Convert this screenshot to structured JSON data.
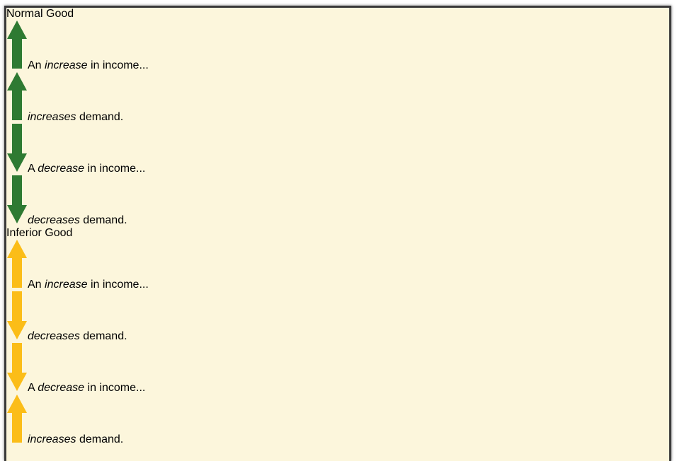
{
  "sections": [
    {
      "title": "Normal Good",
      "arrow_color": "#2e7a32",
      "rows": [
        {
          "left": {
            "arrow": "up",
            "parts": [
              "An",
              "increase",
              "in income..."
            ]
          },
          "right": {
            "arrow": "up",
            "parts": [
              "increases",
              "demand."
            ]
          }
        },
        {
          "left": {
            "arrow": "down",
            "parts": [
              "A",
              "decrease",
              "in income..."
            ]
          },
          "right": {
            "arrow": "down",
            "parts": [
              "decreases",
              "demand."
            ]
          }
        }
      ]
    },
    {
      "title": "Inferior Good",
      "arrow_color": "#fbbd18",
      "rows": [
        {
          "left": {
            "arrow": "up",
            "parts": [
              "An",
              "increase",
              "in income..."
            ]
          },
          "right": {
            "arrow": "down",
            "parts": [
              "decreases",
              "demand."
            ]
          }
        },
        {
          "left": {
            "arrow": "down",
            "parts": [
              "A",
              "decrease",
              "in income..."
            ]
          },
          "right": {
            "arrow": "up",
            "parts": [
              "increases",
              "demand."
            ]
          }
        }
      ]
    }
  ]
}
